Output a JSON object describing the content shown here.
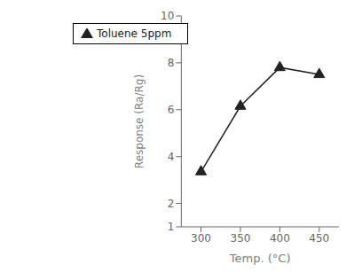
{
  "chart_data": {
    "type": "line",
    "xlabel": "Temp. (°C)",
    "ylabel": "Response (Ra/Rg)",
    "x": [
      300,
      350,
      400,
      450
    ],
    "series": [
      {
        "name": "Toluene 5ppm",
        "color": "#222222",
        "marker": "triangle",
        "values": [
          3.35,
          6.15,
          7.8,
          7.5
        ]
      }
    ],
    "xlim": [
      275,
      475
    ],
    "ylim": [
      1,
      10
    ],
    "xticks": [
      300,
      350,
      400,
      450
    ],
    "yticks": [
      1,
      2,
      4,
      6,
      8,
      10
    ],
    "legend": "upper left",
    "grid": false
  }
}
